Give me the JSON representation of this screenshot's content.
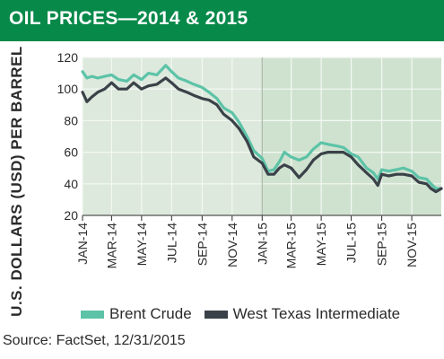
{
  "header": {
    "title": "OIL PRICES—2014 & 2015"
  },
  "source": "Source: FactSet, 12/31/2015",
  "colors": {
    "banner": "#07894a",
    "brent": "#5cc3a7",
    "wti": "#3a4148",
    "bg_2014": "#dde9dd",
    "bg_2015": "#cfe2cf",
    "grid": "#f4f8f4",
    "divider": "#a9b5a9"
  },
  "chart_data": {
    "type": "line",
    "title": "OIL PRICES—2014 & 2015",
    "xlabel": "",
    "ylabel": "U.S. DOLLARS (USD) PER BARREL",
    "ylim": [
      20,
      120
    ],
    "yticks": [
      20,
      40,
      60,
      80,
      100,
      120
    ],
    "xlim": [
      "2014-01-01",
      "2015-12-31"
    ],
    "xticks": [
      "2014-01-01",
      "2014-03-01",
      "2014-05-01",
      "2014-07-01",
      "2014-09-01",
      "2014-11-01",
      "2015-01-01",
      "2015-03-01",
      "2015-05-01",
      "2015-07-01",
      "2015-09-01",
      "2015-11-01"
    ],
    "xtick_labels": [
      "JAN-14",
      "MAR-14",
      "MAY-14",
      "JUL-14",
      "SEP-14",
      "NOV-14",
      "JAN-15",
      "MAR-15",
      "MAY-15",
      "JUL-15",
      "SEP-15",
      "NOV-15"
    ],
    "grid": true,
    "legend_position": "bottom",
    "series": [
      {
        "name": "Brent Crude",
        "x": [
          "2014-01-01",
          "2014-01-10",
          "2014-01-20",
          "2014-02-01",
          "2014-02-15",
          "2014-03-01",
          "2014-03-15",
          "2014-04-01",
          "2014-04-15",
          "2014-05-01",
          "2014-05-15",
          "2014-06-01",
          "2014-06-19",
          "2014-07-01",
          "2014-07-15",
          "2014-08-01",
          "2014-08-15",
          "2014-09-01",
          "2014-09-15",
          "2014-10-01",
          "2014-10-15",
          "2014-11-01",
          "2014-11-15",
          "2014-12-01",
          "2014-12-15",
          "2015-01-01",
          "2015-01-13",
          "2015-01-25",
          "2015-02-05",
          "2015-02-15",
          "2015-03-01",
          "2015-03-17",
          "2015-04-01",
          "2015-04-15",
          "2015-05-01",
          "2015-05-15",
          "2015-06-01",
          "2015-06-15",
          "2015-07-01",
          "2015-07-15",
          "2015-08-01",
          "2015-08-15",
          "2015-08-24",
          "2015-09-01",
          "2015-09-15",
          "2015-10-01",
          "2015-10-15",
          "2015-11-01",
          "2015-11-15",
          "2015-12-01",
          "2015-12-10",
          "2015-12-20",
          "2015-12-31"
        ],
        "values": [
          111,
          107,
          108,
          107,
          108,
          109,
          106,
          105,
          109,
          106,
          110,
          109,
          115,
          111,
          107,
          105,
          103,
          101,
          98,
          94,
          88,
          85,
          79,
          70,
          61,
          56,
          48,
          49,
          54,
          60,
          57,
          55,
          57,
          62,
          66,
          65,
          64,
          63,
          59,
          57,
          50,
          47,
          43,
          49,
          48,
          49,
          50,
          48,
          44,
          43,
          40,
          37,
          37
        ]
      },
      {
        "name": "West Texas Intermediate",
        "x": [
          "2014-01-01",
          "2014-01-10",
          "2014-01-20",
          "2014-02-01",
          "2014-02-15",
          "2014-03-01",
          "2014-03-15",
          "2014-04-01",
          "2014-04-15",
          "2014-05-01",
          "2014-05-15",
          "2014-06-01",
          "2014-06-19",
          "2014-07-01",
          "2014-07-15",
          "2014-08-01",
          "2014-08-15",
          "2014-09-01",
          "2014-09-15",
          "2014-10-01",
          "2014-10-15",
          "2014-11-01",
          "2014-11-15",
          "2014-12-01",
          "2014-12-15",
          "2015-01-01",
          "2015-01-13",
          "2015-01-25",
          "2015-02-05",
          "2015-02-15",
          "2015-03-01",
          "2015-03-17",
          "2015-04-01",
          "2015-04-15",
          "2015-05-01",
          "2015-05-15",
          "2015-06-01",
          "2015-06-15",
          "2015-07-01",
          "2015-07-15",
          "2015-08-01",
          "2015-08-15",
          "2015-08-24",
          "2015-09-01",
          "2015-09-15",
          "2015-10-01",
          "2015-10-15",
          "2015-11-01",
          "2015-11-15",
          "2015-12-01",
          "2015-12-10",
          "2015-12-20",
          "2015-12-31"
        ],
        "values": [
          98,
          92,
          95,
          98,
          100,
          104,
          100,
          100,
          104,
          100,
          102,
          103,
          107,
          104,
          100,
          98,
          96,
          94,
          93,
          90,
          84,
          80,
          75,
          67,
          57,
          53,
          46,
          46,
          50,
          52,
          50,
          44,
          49,
          55,
          59,
          60,
          60,
          60,
          57,
          52,
          47,
          43,
          39,
          46,
          45,
          46,
          46,
          45,
          41,
          40,
          37,
          35,
          37
        ]
      }
    ]
  }
}
